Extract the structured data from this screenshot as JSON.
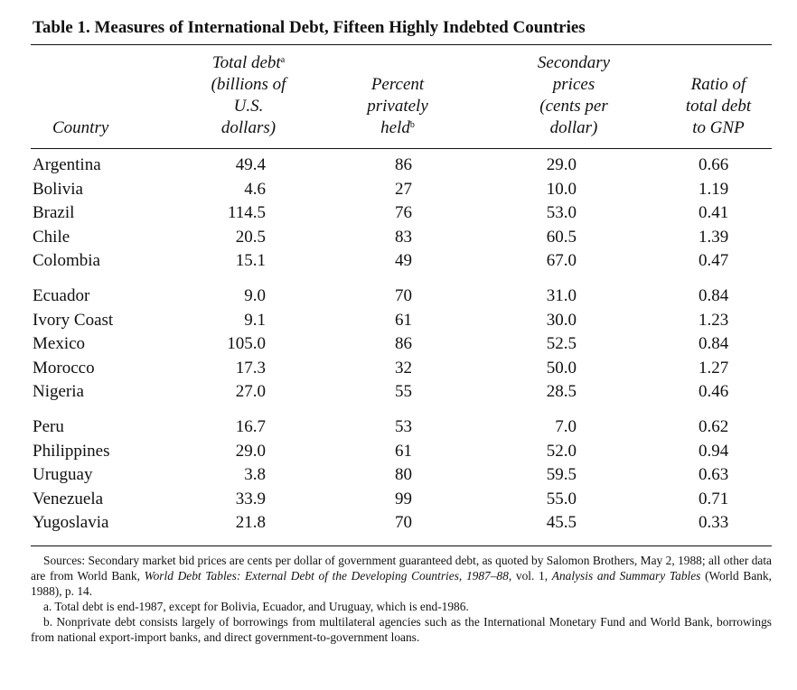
{
  "title": "Table 1.  Measures of International Debt, Fifteen Highly Indebted Countries",
  "headers": {
    "country": "Country",
    "debt": [
      "Total debt",
      "(billions of",
      "U.S.",
      "dollars)"
    ],
    "debt_mark": "a",
    "priv": [
      "Percent",
      "privately",
      "held"
    ],
    "priv_mark": "b",
    "sec": [
      "Secondary",
      "prices",
      "(cents per",
      "dollar)"
    ],
    "ratio": [
      "Ratio of",
      "total debt",
      "to GNP"
    ]
  },
  "rows": [
    {
      "country": "Argentina",
      "debt": "49.4",
      "priv": "86",
      "sec": "29.0",
      "ratio": "0.66"
    },
    {
      "country": "Bolivia",
      "debt": "4.6",
      "priv": "27",
      "sec": "10.0",
      "ratio": "1.19"
    },
    {
      "country": "Brazil",
      "debt": "114.5",
      "priv": "76",
      "sec": "53.0",
      "ratio": "0.41"
    },
    {
      "country": "Chile",
      "debt": "20.5",
      "priv": "83",
      "sec": "60.5",
      "ratio": "1.39"
    },
    {
      "country": "Colombia",
      "debt": "15.1",
      "priv": "49",
      "sec": "67.0",
      "ratio": "0.47"
    },
    {
      "country": "Ecuador",
      "debt": "9.0",
      "priv": "70",
      "sec": "31.0",
      "ratio": "0.84"
    },
    {
      "country": "Ivory Coast",
      "debt": "9.1",
      "priv": "61",
      "sec": "30.0",
      "ratio": "1.23"
    },
    {
      "country": "Mexico",
      "debt": "105.0",
      "priv": "86",
      "sec": "52.5",
      "ratio": "0.84"
    },
    {
      "country": "Morocco",
      "debt": "17.3",
      "priv": "32",
      "sec": "50.0",
      "ratio": "1.27"
    },
    {
      "country": "Nigeria",
      "debt": "27.0",
      "priv": "55",
      "sec": "28.5",
      "ratio": "0.46"
    },
    {
      "country": "Peru",
      "debt": "16.7",
      "priv": "53",
      "sec": "7.0",
      "ratio": "0.62"
    },
    {
      "country": "Philippines",
      "debt": "29.0",
      "priv": "61",
      "sec": "52.0",
      "ratio": "0.94"
    },
    {
      "country": "Uruguay",
      "debt": "3.8",
      "priv": "80",
      "sec": "59.5",
      "ratio": "0.63"
    },
    {
      "country": "Venezuela",
      "debt": "33.9",
      "priv": "99",
      "sec": "55.0",
      "ratio": "0.71"
    },
    {
      "country": "Yugoslavia",
      "debt": "21.8",
      "priv": "70",
      "sec": "45.5",
      "ratio": "0.33"
    }
  ],
  "notes": {
    "sources_a": "Sources: Secondary market bid prices are cents per dollar of government guaranteed debt, as quoted by Salomon Brothers, May 2, 1988; all other data are from World Bank, ",
    "sources_b": "World Debt Tables: External Debt of the Developing Countries, 1987–88,",
    "sources_c": " vol. 1, ",
    "sources_d": "Analysis and Summary Tables",
    "sources_e": " (World Bank, 1988), p. 14.",
    "note_a": "a. Total debt is end-1987, except for Bolivia, Ecuador, and Uruguay, which is end-1986.",
    "note_b": "b. Nonprivate debt consists largely of borrowings from multilateral agencies such as the International Monetary Fund and World Bank, borrowings from national export-import banks, and direct government-to-government loans."
  }
}
